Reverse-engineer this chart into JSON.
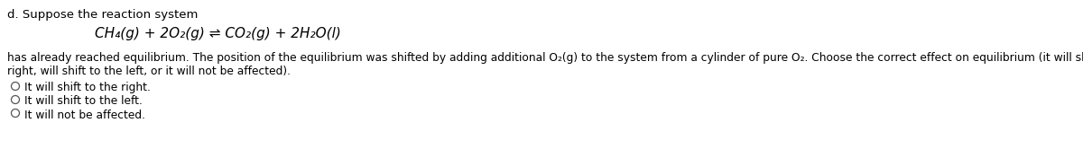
{
  "background_color": "#ffffff",
  "label_d": "d. Suppose the reaction system",
  "eq_parts": {
    "main": "CH₄(g) + 2O₂(g) ⇌ CO₂(g) + 2H₂O(l)"
  },
  "body1": "has already reached equilibrium. The position of the equilibrium was shifted by adding additional O₂(g) to the system from a cylinder of pure O₂. Choose the correct effect on equilibrium (it will shift to the",
  "body2": "right, will shift to the left, or it will not be affected).",
  "option1": "It will shift to the right.",
  "option2": "It will shift to the left.",
  "option3": "It will not be affected.",
  "font_size_label": 9.5,
  "font_size_eq": 11,
  "font_size_body": 8.8,
  "font_size_option": 8.8
}
